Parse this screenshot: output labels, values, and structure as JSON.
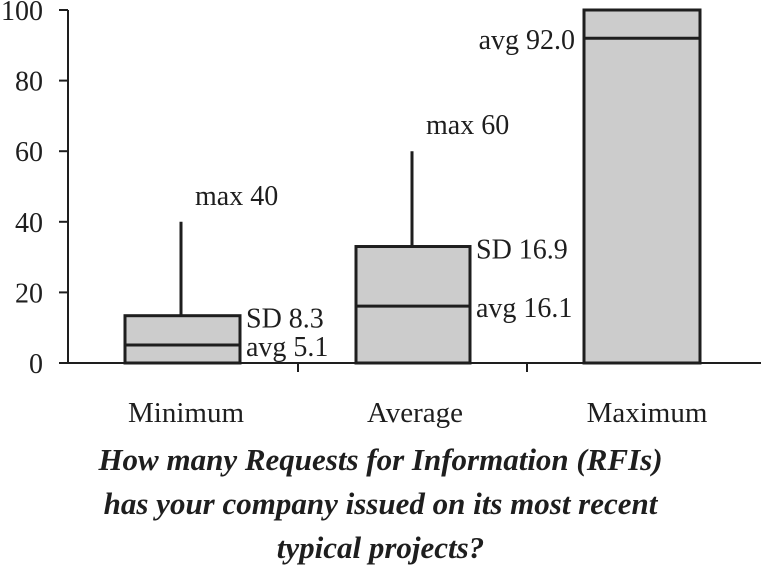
{
  "chart_data": {
    "type": "bar",
    "categories": [
      "Minimum",
      "Average",
      "Maximum"
    ],
    "bars": [
      {
        "category": "Minimum",
        "avg": 5.1,
        "sd": 8.3,
        "max": 40,
        "avg_label": "avg 5.1",
        "sd_label": "SD 8.3",
        "max_label": "max 40"
      },
      {
        "category": "Average",
        "avg": 16.1,
        "sd": 16.9,
        "max": 60,
        "avg_label": "avg 16.1",
        "sd_label": "SD 16.9",
        "max_label": "max 60"
      },
      {
        "category": "Maximum",
        "avg": 92.0,
        "top": 100,
        "avg_label": "avg 92.0"
      }
    ],
    "y_ticks": [
      "0",
      "20",
      "40",
      "60",
      "80",
      "100"
    ],
    "ylim": [
      0,
      100
    ],
    "caption": [
      "How many Requests for Information (RFIs)",
      "has your company issued on its most recent",
      "typical projects?"
    ],
    "colors": {
      "box_fill": "#cccccc",
      "stroke": "#1e1e1e",
      "text": "#1e1e1e"
    },
    "grid": false
  }
}
